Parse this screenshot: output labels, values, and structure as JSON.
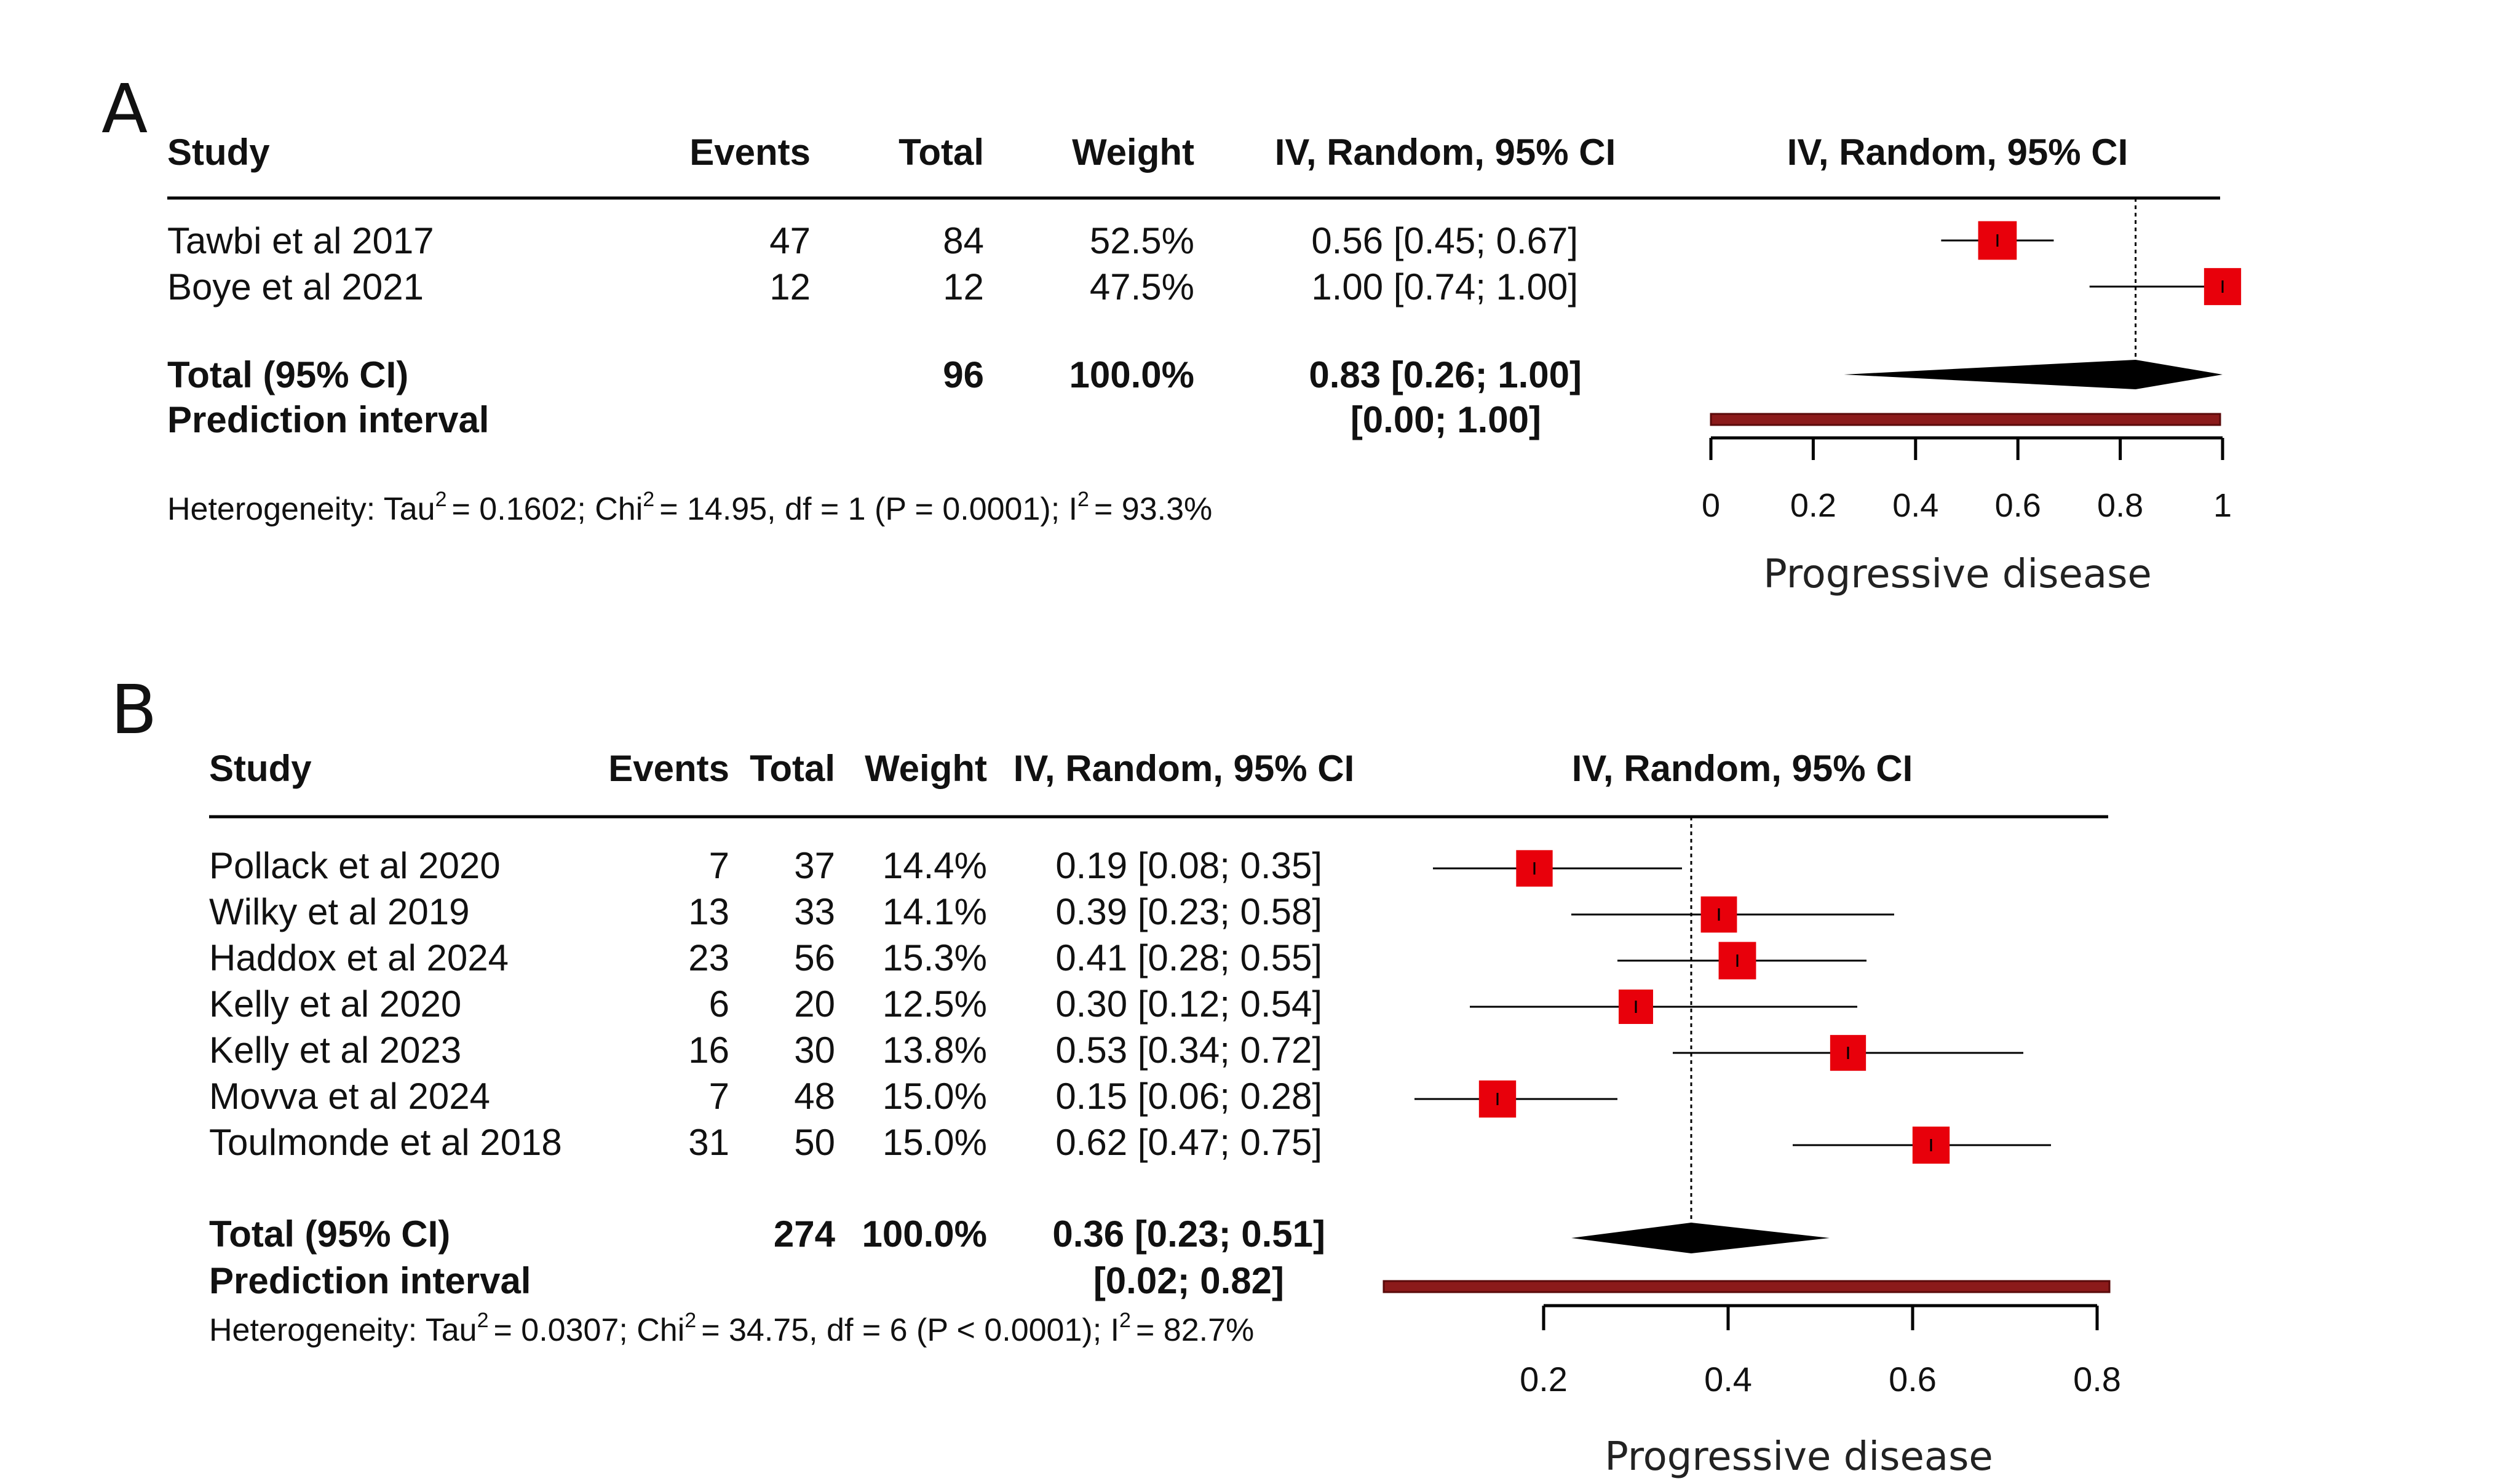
{
  "colors": {
    "square": "#e8000b",
    "diamond": "#000000",
    "prediction_bar": "#8b1a1a",
    "text": "#111111"
  },
  "chart_data": [
    {
      "type": "forest",
      "panel_label": "A",
      "columns": {
        "study": "Study",
        "events": "Events",
        "total": "Total",
        "weight": "Weight",
        "ci": "IV, Random, 95% CI",
        "plot": "IV, Random, 95% CI"
      },
      "studies": [
        {
          "name": "Tawbi et al 2017",
          "events": "47",
          "total": "84",
          "weight": "52.5%",
          "ci_text": "0.56 [0.45; 0.67]",
          "est": 0.56,
          "lo": 0.45,
          "hi": 0.67,
          "w": 52.5
        },
        {
          "name": "Boye et al 2021",
          "events": "12",
          "total": "12",
          "weight": "47.5%",
          "ci_text": "1.00 [0.74; 1.00]",
          "est": 1.0,
          "lo": 0.74,
          "hi": 1.0,
          "w": 47.5
        }
      ],
      "pooled": {
        "label": "Total (95% CI)",
        "total": "96",
        "weight": "100.0%",
        "ci_text": "0.83 [0.26; 1.00]",
        "est": 0.83,
        "lo": 0.26,
        "hi": 1.0
      },
      "prediction": {
        "label": "Prediction interval",
        "ci_text": "[0.00; 1.00]",
        "lo": 0.0,
        "hi": 1.0
      },
      "heterogeneity": {
        "prefix": "Heterogeneity: Tau",
        "tau2": "= 0.1602; Chi",
        "chi2": "= 14.95, df = 1 (P = 0.0001); I",
        "i2": "= 93.3%",
        "sup": "2"
      },
      "axis": {
        "min": 0,
        "max": 1,
        "ticks": [
          "0",
          "0.2",
          "0.4",
          "0.6",
          "0.8",
          "1"
        ],
        "tick_values": [
          0,
          0.2,
          0.4,
          0.6,
          0.8,
          1
        ],
        "title": "Progressive disease"
      }
    },
    {
      "type": "forest",
      "panel_label": "B",
      "columns": {
        "study": "Study",
        "events": "Events",
        "total": "Total",
        "weight": "Weight",
        "ci": "IV, Random, 95% CI",
        "plot": "IV, Random, 95% CI"
      },
      "studies": [
        {
          "name": "Pollack et al 2020",
          "events": "7",
          "total": "37",
          "weight": "14.4%",
          "ci_text": "0.19 [0.08; 0.35]",
          "est": 0.19,
          "lo": 0.08,
          "hi": 0.35,
          "w": 14.4
        },
        {
          "name": "Wilky et al 2019",
          "events": "13",
          "total": "33",
          "weight": "14.1%",
          "ci_text": "0.39 [0.23; 0.58]",
          "est": 0.39,
          "lo": 0.23,
          "hi": 0.58,
          "w": 14.1
        },
        {
          "name": "Haddox et al 2024",
          "events": "23",
          "total": "56",
          "weight": "15.3%",
          "ci_text": "0.41 [0.28; 0.55]",
          "est": 0.41,
          "lo": 0.28,
          "hi": 0.55,
          "w": 15.3
        },
        {
          "name": "Kelly et al 2020",
          "events": "6",
          "total": "20",
          "weight": "12.5%",
          "ci_text": "0.30 [0.12; 0.54]",
          "est": 0.3,
          "lo": 0.12,
          "hi": 0.54,
          "w": 12.5
        },
        {
          "name": "Kelly et al 2023",
          "events": "16",
          "total": "30",
          "weight": "13.8%",
          "ci_text": "0.53 [0.34; 0.72]",
          "est": 0.53,
          "lo": 0.34,
          "hi": 0.72,
          "w": 13.8
        },
        {
          "name": "Movva et al 2024",
          "events": "7",
          "total": "48",
          "weight": "15.0%",
          "ci_text": "0.15 [0.06; 0.28]",
          "est": 0.15,
          "lo": 0.06,
          "hi": 0.28,
          "w": 15.0
        },
        {
          "name": "Toulmonde et al 2018",
          "events": "31",
          "total": "50",
          "weight": "15.0%",
          "ci_text": "0.62 [0.47; 0.75]",
          "est": 0.62,
          "lo": 0.47,
          "hi": 0.75,
          "w": 15.0
        }
      ],
      "pooled": {
        "label": "Total (95% CI)",
        "total": "274",
        "weight": "100.0%",
        "ci_text": "0.36 [0.23; 0.51]",
        "est": 0.36,
        "lo": 0.23,
        "hi": 0.51
      },
      "prediction": {
        "label": "Prediction interval",
        "ci_text": "[0.02; 0.82]",
        "lo": 0.02,
        "hi": 0.82
      },
      "heterogeneity": {
        "prefix": "Heterogeneity: Tau",
        "tau2": "= 0.0307; Chi",
        "chi2": "= 34.75, df = 6 (P < 0.0001); I",
        "i2": "= 82.7%",
        "sup": "2"
      },
      "axis": {
        "min": 0.2,
        "max": 0.8,
        "ticks": [
          "0.2",
          "0.4",
          "0.6",
          "0.8"
        ],
        "tick_values": [
          0.2,
          0.4,
          0.6,
          0.8
        ],
        "title": "Progressive disease"
      }
    }
  ]
}
